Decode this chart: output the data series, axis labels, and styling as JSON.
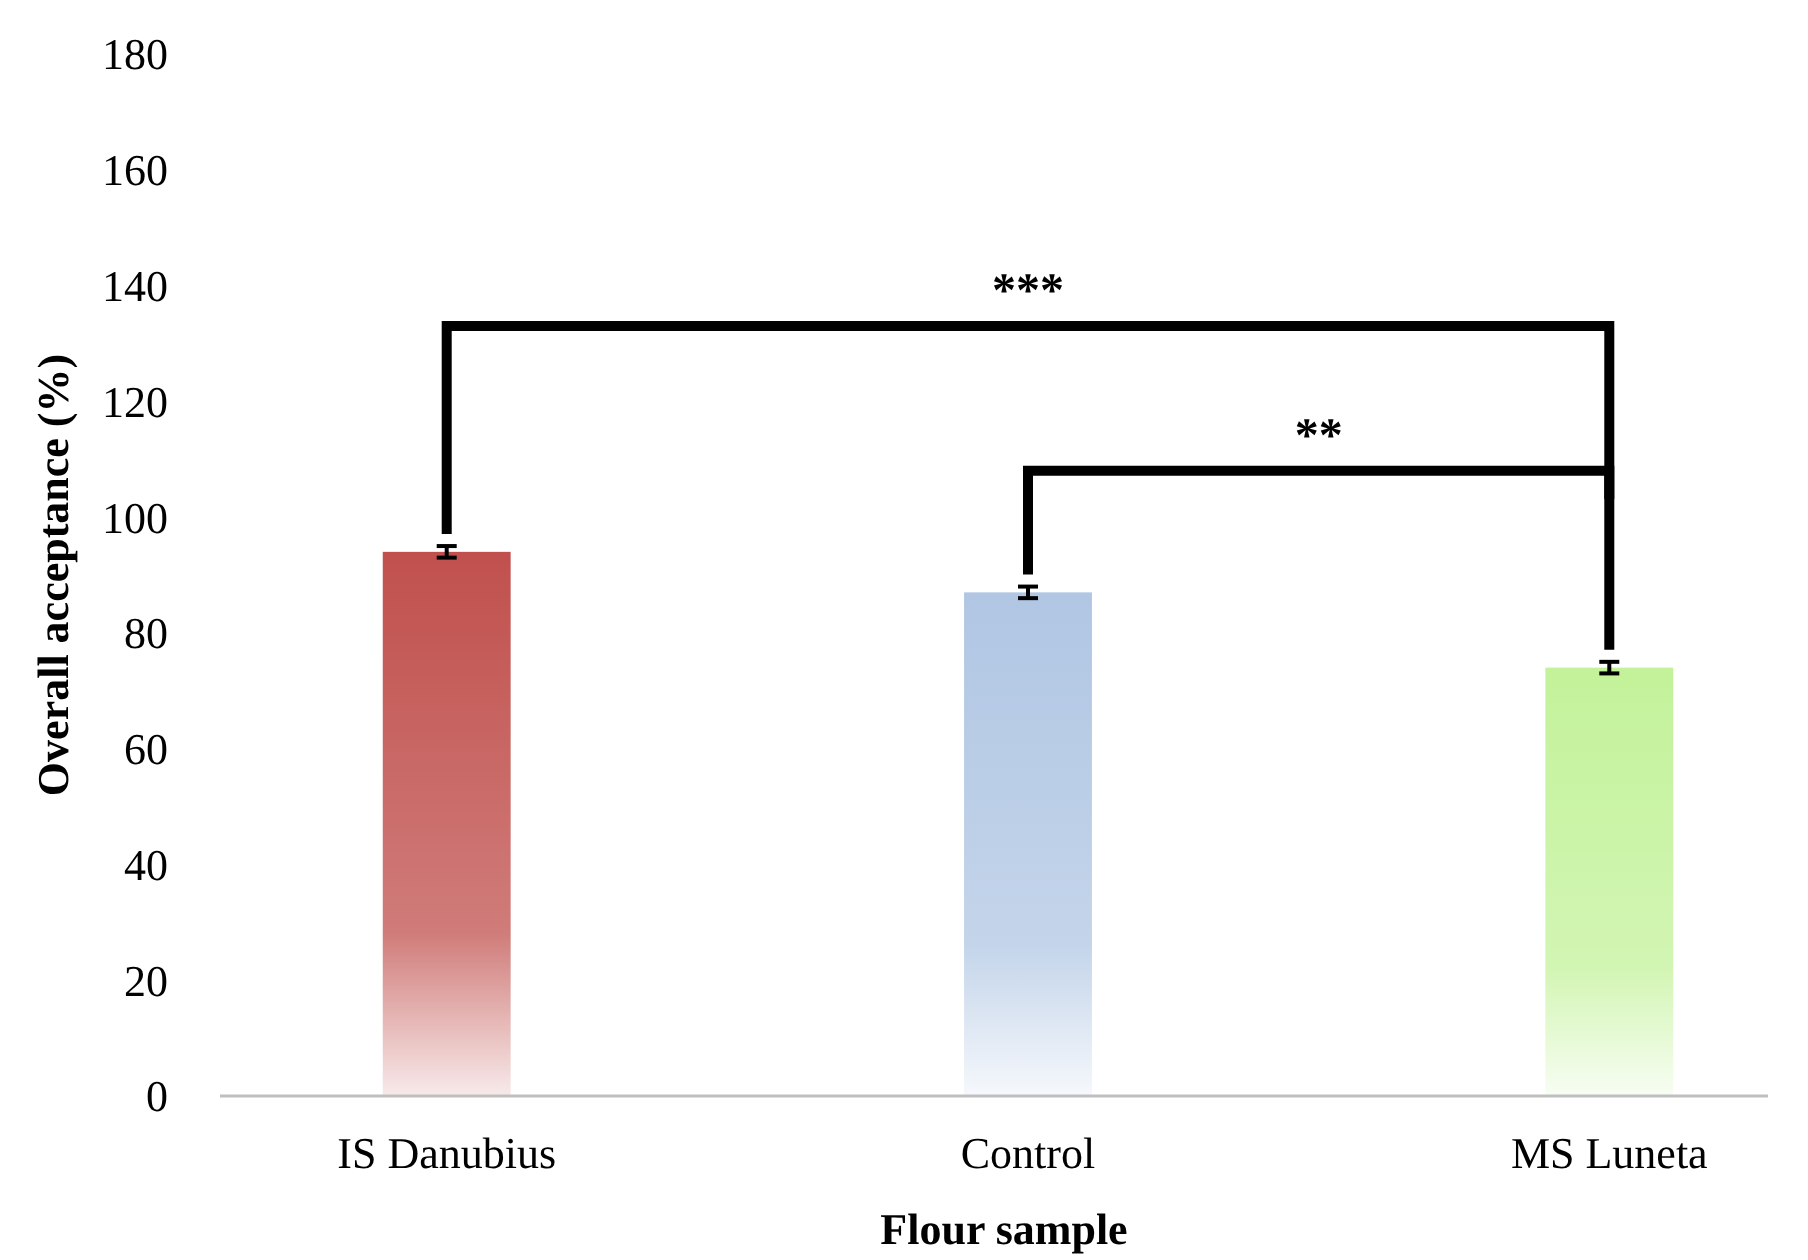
{
  "chart_data": {
    "type": "bar",
    "xlabel": "Flour sample",
    "ylabel": "Overall acceptance (%)",
    "categories": [
      "IS Danubius",
      "Control",
      "MS Luneta"
    ],
    "values": [
      94,
      87,
      74
    ],
    "errors": [
      1,
      1,
      1
    ],
    "colors": [
      "#c0504d",
      "#b0c6e3",
      "#c3f29a"
    ],
    "ylim": [
      0,
      180
    ],
    "yticks": [
      0,
      20,
      40,
      60,
      80,
      100,
      120,
      140,
      160,
      180
    ],
    "grid": false,
    "annotations": [
      "***",
      "**"
    ]
  }
}
